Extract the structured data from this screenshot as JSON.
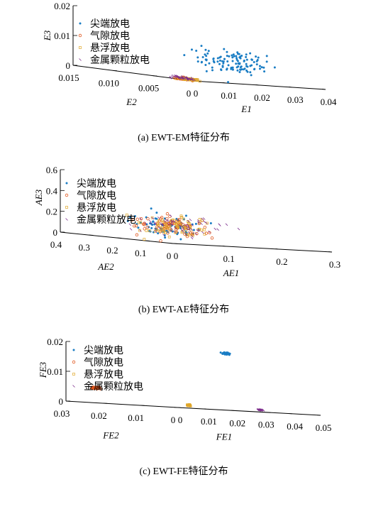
{
  "colors": {
    "tip": "#1a7dc4",
    "gap": "#e0571d",
    "float": "#e0a72a",
    "particle": "#7d2c8c"
  },
  "chart_data": [
    {
      "type": "scatter",
      "caption": "(a) EWT-EM特征分布",
      "xlabel": "E1",
      "ylabel": "E2",
      "zlabel": "E3",
      "xticks": [
        "0",
        "0.01",
        "0.02",
        "0.03",
        "0.04"
      ],
      "yticks": [
        "0",
        "0.005",
        "0.010",
        "0.015"
      ],
      "zticks": [
        "0",
        "0.01",
        "0.02"
      ],
      "xlim": [
        0,
        0.04
      ],
      "ylim": [
        0,
        0.015
      ],
      "zlim": [
        0,
        0.02
      ],
      "legend": [
        "尖端放电",
        "气隙放电",
        "悬浮放电",
        "金属颗粒放电"
      ],
      "series": [
        {
          "name": "尖端放电",
          "marker": "dot",
          "color": "tip",
          "center": [
            0.015,
            0.001,
            0.007
          ],
          "spread": [
            0.01,
            0.004,
            0.004
          ],
          "n": 120
        },
        {
          "name": "气隙放电",
          "marker": "circle",
          "color": "gap",
          "center": [
            0.0005,
            0.0012,
            0.0003
          ],
          "spread": [
            0.001,
            0.001,
            0.0003
          ],
          "n": 60
        },
        {
          "name": "悬浮放电",
          "marker": "square",
          "color": "float",
          "center": [
            0.001,
            0.001,
            0.0003
          ],
          "spread": [
            0.0015,
            0.0012,
            0.0003
          ],
          "n": 60
        },
        {
          "name": "金属颗粒放电",
          "marker": "x",
          "color": "particle",
          "center": [
            0.0005,
            0.0015,
            0.0005
          ],
          "spread": [
            0.001,
            0.0015,
            0.0005
          ],
          "n": 50
        }
      ]
    },
    {
      "type": "scatter",
      "caption": "(b) EWT-AE特征分布",
      "xlabel": "AE1",
      "ylabel": "AE2",
      "zlabel": "AE3",
      "xticks": [
        "0",
        "0.1",
        "0.2",
        "0.3"
      ],
      "yticks": [
        "0",
        "0.1",
        "0.2",
        "0.3",
        "0.4"
      ],
      "zticks": [
        "0",
        "0.2",
        "0.4",
        "0.6"
      ],
      "xlim": [
        0,
        0.3
      ],
      "ylim": [
        0,
        0.4
      ],
      "zlim": [
        0,
        0.6
      ],
      "legend": [
        "尖端放电",
        "气隙放电",
        "悬浮放电",
        "金属颗粒放电"
      ],
      "series": [
        {
          "name": "尖端放电",
          "marker": "dot",
          "color": "tip",
          "center": [
            0.04,
            0.12,
            0.15
          ],
          "spread": [
            0.05,
            0.08,
            0.1
          ],
          "n": 70
        },
        {
          "name": "气隙放电",
          "marker": "circle",
          "color": "gap",
          "center": [
            0.05,
            0.1,
            0.15
          ],
          "spread": [
            0.06,
            0.08,
            0.1
          ],
          "n": 80
        },
        {
          "name": "悬浮放电",
          "marker": "square",
          "color": "float",
          "center": [
            0.05,
            0.1,
            0.14
          ],
          "spread": [
            0.06,
            0.08,
            0.1
          ],
          "n": 80
        },
        {
          "name": "金属颗粒放电",
          "marker": "x",
          "color": "particle",
          "center": [
            0.06,
            0.1,
            0.15
          ],
          "spread": [
            0.07,
            0.08,
            0.1
          ],
          "n": 70
        }
      ]
    },
    {
      "type": "scatter",
      "caption": "(c) EWT-FE特征分布",
      "xlabel": "FE1",
      "ylabel": "FE2",
      "zlabel": "FE3",
      "xticks": [
        "0",
        "0.01",
        "0.02",
        "0.03",
        "0.04",
        "0.05"
      ],
      "yticks": [
        "0",
        "0.01",
        "0.02",
        "0.03"
      ],
      "zticks": [
        "0",
        "0.01",
        "0.02"
      ],
      "xlim": [
        0,
        0.05
      ],
      "ylim": [
        0,
        0.03
      ],
      "zlim": [
        0,
        0.02
      ],
      "legend": [
        "尖端放电",
        "气隙放电",
        "悬浮放电",
        "金属颗粒放电"
      ],
      "series": [
        {
          "name": "尖端放电",
          "marker": "dot",
          "color": "tip",
          "center": [
            0.017,
            0.0,
            0.019
          ],
          "spread": [
            0.0012,
            0.0003,
            0.0003
          ],
          "n": 80
        },
        {
          "name": "气隙放电",
          "marker": "circle",
          "color": "gap",
          "center": [
            0.0,
            0.022,
            0.005
          ],
          "spread": [
            0.0002,
            0.0012,
            0.0002
          ],
          "n": 60
        },
        {
          "name": "悬浮放电",
          "marker": "square",
          "color": "float",
          "center": [
            0.004,
            0.0,
            0.001
          ],
          "spread": [
            0.0005,
            0.0002,
            0.0002
          ],
          "n": 40
        },
        {
          "name": "金属颗粒放电",
          "marker": "x",
          "color": "particle",
          "center": [
            0.029,
            0.0,
            0.0007
          ],
          "spread": [
            0.0008,
            0.0001,
            0.0001
          ],
          "n": 40
        }
      ]
    }
  ]
}
